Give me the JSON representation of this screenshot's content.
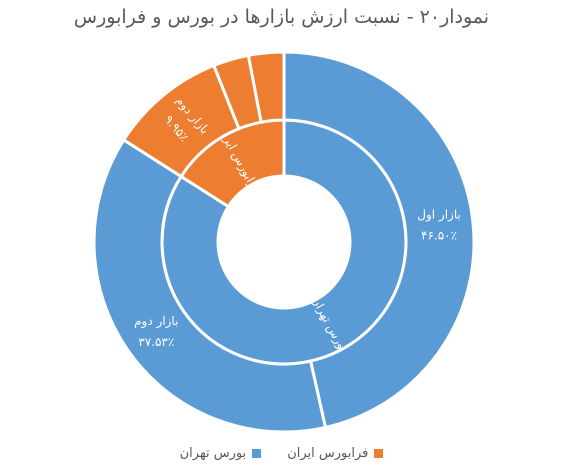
{
  "chart_data": {
    "type": "sunburst",
    "title": "نمودار۲۰ - نسبت ارزش بازارها در بورس و فرابورس",
    "inner_ring": [
      {
        "name": "بورس تهران",
        "value": 84.03,
        "color": "#5b9bd5"
      },
      {
        "name": "فرابورس ایران",
        "value": 15.97,
        "color": "#ed7d31"
      }
    ],
    "outer_ring": [
      {
        "label": "بازار اول",
        "value": 46.5,
        "value_label": "۴۶.۵۰٪",
        "parent": "بورس تهران",
        "color": "#5b9bd5"
      },
      {
        "label": "بازار دوم",
        "value": 37.53,
        "value_label": "۳۷.۵۳٪",
        "parent": "بورس تهران",
        "color": "#5b9bd5"
      },
      {
        "label": "بازار دوم",
        "value": 9.95,
        "value_label": "۹.۹۵٪",
        "parent": "فرابورس ایران",
        "color": "#ed7d31"
      },
      {
        "label": "",
        "value": 3.02,
        "value_label": "",
        "parent": "فرابورس ایران",
        "color": "#ed7d31"
      },
      {
        "label": "",
        "value": 3.0,
        "value_label": "",
        "parent": "فرابورس ایران",
        "color": "#ed7d31"
      }
    ],
    "legend": [
      {
        "name": "بورس تهران",
        "color": "#5b9bd5"
      },
      {
        "name": "فرابورس ایران",
        "color": "#ed7d31"
      }
    ],
    "legend_position": "bottom"
  }
}
